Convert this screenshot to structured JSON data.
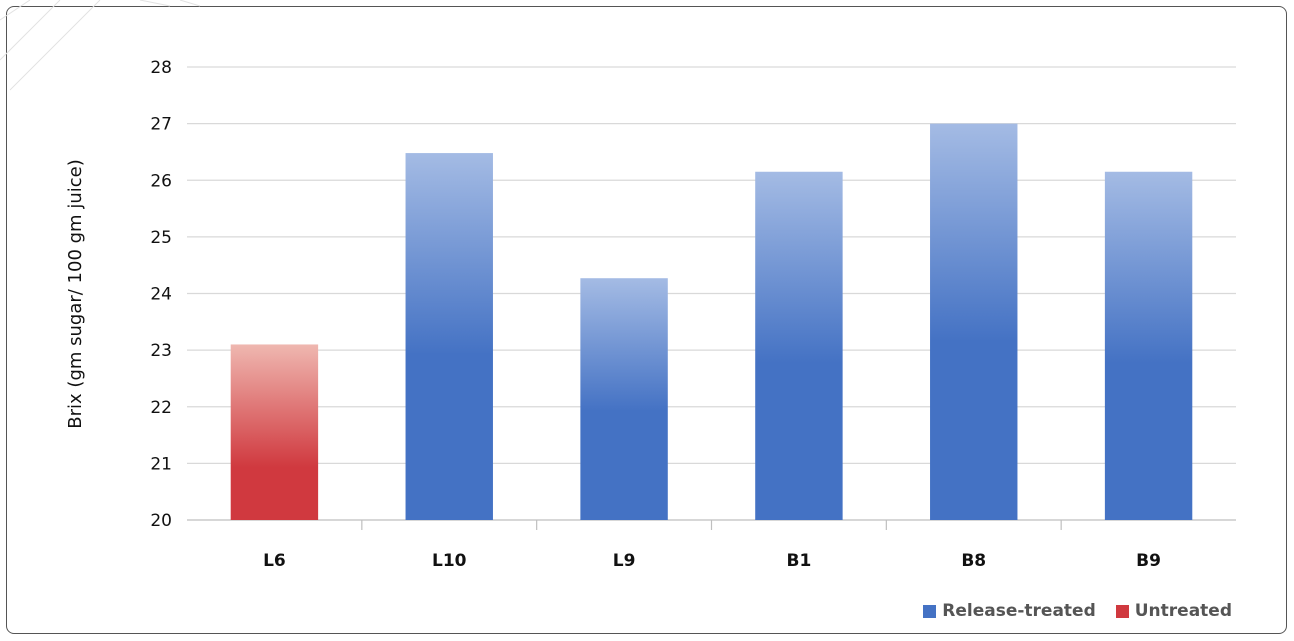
{
  "colors": {
    "release_treated": "#4472c4",
    "release_treated_light": "#a4bbe4",
    "untreated": "#d0393f",
    "untreated_light": "#efb7b0",
    "grid": "#d9d9d9"
  },
  "chart_data": {
    "type": "bar",
    "categories": [
      "L6",
      "L10",
      "L9",
      "B1",
      "B8",
      "B9"
    ],
    "values": [
      23.1,
      26.48,
      24.27,
      26.15,
      27.0,
      26.15
    ],
    "groups": [
      "Untreated",
      "Release-treated",
      "Release-treated",
      "Release-treated",
      "Release-treated",
      "Release-treated"
    ],
    "series": [
      {
        "name": "Release-treated",
        "color": "#4472c4"
      },
      {
        "name": "Untreated",
        "color": "#d0393f"
      }
    ],
    "title": "",
    "xlabel": "",
    "ylabel": "Brix (gm sugar/ 100 gm juice)",
    "ylim": [
      20,
      28
    ],
    "yticks": [
      20,
      21,
      22,
      23,
      24,
      25,
      26,
      27,
      28
    ],
    "ytick_labels": [
      "20",
      "21",
      "22",
      "23",
      "24",
      "25",
      "26",
      "27",
      "28"
    ],
    "grid": true,
    "legend_position": "bottom-right"
  }
}
